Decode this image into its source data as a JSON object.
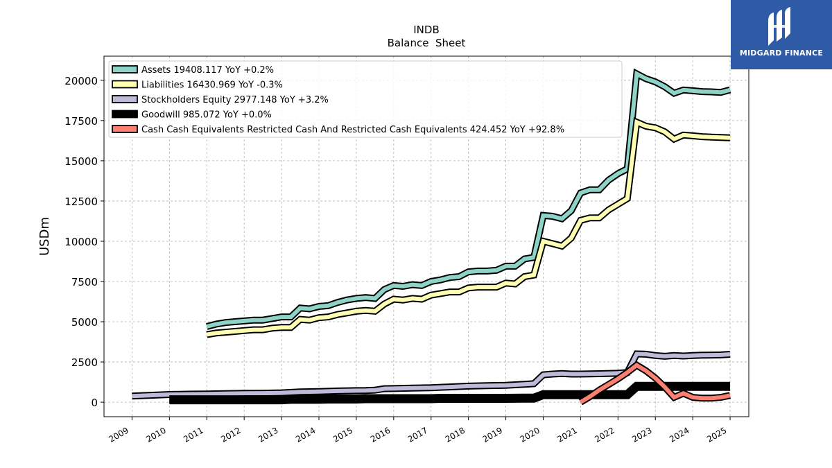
{
  "chart_data": {
    "type": "line",
    "title": "INDB",
    "subtitle": "Balance  Sheet",
    "ylabel": "USDm",
    "xlabel": "",
    "xlim": [
      2008.25,
      2025.5
    ],
    "ylim": [
      -900,
      21500
    ],
    "x_ticks": [
      "2009",
      "2010",
      "2011",
      "2012",
      "2013",
      "2014",
      "2015",
      "2016",
      "2017",
      "2018",
      "2019",
      "2020",
      "2021",
      "2022",
      "2023",
      "2024",
      "2025"
    ],
    "y_ticks": [
      "0",
      "2500",
      "5000",
      "7500",
      "10000",
      "12500",
      "15000",
      "17500",
      "20000"
    ],
    "grid": true,
    "legend_position": "top-left",
    "series": [
      {
        "name": "Assets  19408.117 YoY +0.2%",
        "color": "#8dd3c7",
        "width": 7,
        "points": [
          [
            2011.0,
            4700
          ],
          [
            2011.25,
            4850
          ],
          [
            2011.5,
            4950
          ],
          [
            2011.75,
            5000
          ],
          [
            2012.0,
            5050
          ],
          [
            2012.25,
            5100
          ],
          [
            2012.5,
            5100
          ],
          [
            2012.75,
            5200
          ],
          [
            2013.0,
            5300
          ],
          [
            2013.25,
            5300
          ],
          [
            2013.5,
            5850
          ],
          [
            2013.75,
            5800
          ],
          [
            2014.0,
            5950
          ],
          [
            2014.25,
            6000
          ],
          [
            2014.5,
            6200
          ],
          [
            2014.75,
            6350
          ],
          [
            2015.0,
            6450
          ],
          [
            2015.25,
            6500
          ],
          [
            2015.5,
            6450
          ],
          [
            2015.75,
            7000
          ],
          [
            2016.0,
            7250
          ],
          [
            2016.25,
            7200
          ],
          [
            2016.5,
            7300
          ],
          [
            2016.75,
            7250
          ],
          [
            2017.0,
            7500
          ],
          [
            2017.25,
            7600
          ],
          [
            2017.5,
            7750
          ],
          [
            2017.75,
            7800
          ],
          [
            2018.0,
            8100
          ],
          [
            2018.25,
            8150
          ],
          [
            2018.5,
            8150
          ],
          [
            2018.75,
            8200
          ],
          [
            2019.0,
            8450
          ],
          [
            2019.25,
            8450
          ],
          [
            2019.5,
            8900
          ],
          [
            2019.75,
            9000
          ],
          [
            2020.0,
            11600
          ],
          [
            2020.25,
            11550
          ],
          [
            2020.5,
            11400
          ],
          [
            2020.75,
            11900
          ],
          [
            2021.0,
            13000
          ],
          [
            2021.25,
            13200
          ],
          [
            2021.5,
            13200
          ],
          [
            2021.75,
            13800
          ],
          [
            2022.0,
            14200
          ],
          [
            2022.25,
            14500
          ],
          [
            2022.5,
            20400
          ],
          [
            2022.75,
            20100
          ],
          [
            2023.0,
            19900
          ],
          [
            2023.25,
            19600
          ],
          [
            2023.5,
            19200
          ],
          [
            2023.75,
            19400
          ],
          [
            2024.0,
            19350
          ],
          [
            2024.25,
            19300
          ],
          [
            2024.5,
            19280
          ],
          [
            2024.75,
            19250
          ],
          [
            2025.0,
            19408
          ]
        ]
      },
      {
        "name": "Liabilities  16430.969 YoY -0.3%",
        "color": "#ffffb3",
        "width": 7,
        "points": [
          [
            2011.0,
            4200
          ],
          [
            2011.25,
            4300
          ],
          [
            2011.5,
            4350
          ],
          [
            2011.75,
            4400
          ],
          [
            2012.0,
            4450
          ],
          [
            2012.25,
            4500
          ],
          [
            2012.5,
            4500
          ],
          [
            2012.75,
            4600
          ],
          [
            2013.0,
            4650
          ],
          [
            2013.25,
            4650
          ],
          [
            2013.5,
            5150
          ],
          [
            2013.75,
            5100
          ],
          [
            2014.0,
            5250
          ],
          [
            2014.25,
            5300
          ],
          [
            2014.5,
            5450
          ],
          [
            2014.75,
            5550
          ],
          [
            2015.0,
            5650
          ],
          [
            2015.25,
            5700
          ],
          [
            2015.5,
            5650
          ],
          [
            2015.75,
            6100
          ],
          [
            2016.0,
            6400
          ],
          [
            2016.25,
            6350
          ],
          [
            2016.5,
            6450
          ],
          [
            2016.75,
            6400
          ],
          [
            2017.0,
            6650
          ],
          [
            2017.25,
            6750
          ],
          [
            2017.5,
            6850
          ],
          [
            2017.75,
            6850
          ],
          [
            2018.0,
            7100
          ],
          [
            2018.25,
            7150
          ],
          [
            2018.5,
            7150
          ],
          [
            2018.75,
            7150
          ],
          [
            2019.0,
            7400
          ],
          [
            2019.25,
            7350
          ],
          [
            2019.5,
            7800
          ],
          [
            2019.75,
            7900
          ],
          [
            2020.0,
            10000
          ],
          [
            2020.25,
            9850
          ],
          [
            2020.5,
            9700
          ],
          [
            2020.75,
            10200
          ],
          [
            2021.0,
            11300
          ],
          [
            2021.25,
            11450
          ],
          [
            2021.5,
            11450
          ],
          [
            2021.75,
            11950
          ],
          [
            2022.0,
            12300
          ],
          [
            2022.25,
            12650
          ],
          [
            2022.5,
            17400
          ],
          [
            2022.75,
            17150
          ],
          [
            2023.0,
            17050
          ],
          [
            2023.25,
            16800
          ],
          [
            2023.5,
            16350
          ],
          [
            2023.75,
            16600
          ],
          [
            2024.0,
            16550
          ],
          [
            2024.25,
            16500
          ],
          [
            2024.5,
            16470
          ],
          [
            2024.75,
            16450
          ],
          [
            2025.0,
            16431
          ]
        ]
      },
      {
        "name": "Stockholders Equity  2977.148 YoY +3.2%",
        "color": "#bebada",
        "width": 7,
        "points": [
          [
            2009.0,
            380
          ],
          [
            2009.5,
            430
          ],
          [
            2010.0,
            480
          ],
          [
            2010.5,
            500
          ],
          [
            2011.0,
            510
          ],
          [
            2011.5,
            530
          ],
          [
            2012.0,
            550
          ],
          [
            2012.5,
            560
          ],
          [
            2013.0,
            580
          ],
          [
            2013.5,
            640
          ],
          [
            2014.0,
            660
          ],
          [
            2014.5,
            700
          ],
          [
            2015.0,
            720
          ],
          [
            2015.25,
            730
          ],
          [
            2015.5,
            750
          ],
          [
            2015.75,
            840
          ],
          [
            2016.0,
            850
          ],
          [
            2016.5,
            880
          ],
          [
            2017.0,
            900
          ],
          [
            2017.5,
            950
          ],
          [
            2018.0,
            1000
          ],
          [
            2018.5,
            1030
          ],
          [
            2019.0,
            1050
          ],
          [
            2019.5,
            1110
          ],
          [
            2019.75,
            1150
          ],
          [
            2020.0,
            1700
          ],
          [
            2020.25,
            1750
          ],
          [
            2020.5,
            1780
          ],
          [
            2020.75,
            1750
          ],
          [
            2021.0,
            1750
          ],
          [
            2021.5,
            1770
          ],
          [
            2022.0,
            1800
          ],
          [
            2022.25,
            1850
          ],
          [
            2022.5,
            3000
          ],
          [
            2022.75,
            2980
          ],
          [
            2023.0,
            2900
          ],
          [
            2023.25,
            2850
          ],
          [
            2023.5,
            2900
          ],
          [
            2023.75,
            2870
          ],
          [
            2024.0,
            2900
          ],
          [
            2024.25,
            2920
          ],
          [
            2024.5,
            2930
          ],
          [
            2024.75,
            2940
          ],
          [
            2025.0,
            2977
          ]
        ]
      },
      {
        "name": "Goodwill  985.072 YoY +0.0%",
        "color": "#000000",
        "width": 10,
        "points": [
          [
            2010.0,
            150
          ],
          [
            2010.5,
            150
          ],
          [
            2011.0,
            150
          ],
          [
            2011.5,
            150
          ],
          [
            2012.0,
            150
          ],
          [
            2012.5,
            150
          ],
          [
            2012.75,
            150
          ],
          [
            2013.0,
            150
          ],
          [
            2013.25,
            180
          ],
          [
            2013.5,
            180
          ],
          [
            2014.0,
            180
          ],
          [
            2014.25,
            200
          ],
          [
            2014.5,
            200
          ],
          [
            2015.0,
            200
          ],
          [
            2015.25,
            220
          ],
          [
            2015.5,
            220
          ],
          [
            2016.0,
            220
          ],
          [
            2016.5,
            220
          ],
          [
            2017.0,
            220
          ],
          [
            2017.25,
            240
          ],
          [
            2017.5,
            240
          ],
          [
            2018.0,
            240
          ],
          [
            2018.5,
            240
          ],
          [
            2019.0,
            240
          ],
          [
            2019.5,
            250
          ],
          [
            2019.75,
            250
          ],
          [
            2020.0,
            470
          ],
          [
            2020.5,
            470
          ],
          [
            2021.0,
            470
          ],
          [
            2021.5,
            470
          ],
          [
            2022.0,
            470
          ],
          [
            2022.25,
            470
          ],
          [
            2022.5,
            985
          ],
          [
            2023.0,
            985
          ],
          [
            2023.5,
            985
          ],
          [
            2024.0,
            985
          ],
          [
            2024.5,
            985
          ],
          [
            2025.0,
            985
          ]
        ]
      },
      {
        "name": "Cash Cash Equivalents Restricted Cash And Restricted Cash Equivalents  424.452 YoY +92.8%",
        "color": "#fb8072",
        "width": 7,
        "points": [
          [
            2021.0,
            0
          ],
          [
            2021.25,
            350
          ],
          [
            2021.5,
            750
          ],
          [
            2021.75,
            1100
          ],
          [
            2022.0,
            1450
          ],
          [
            2022.25,
            1850
          ],
          [
            2022.5,
            2300
          ],
          [
            2022.75,
            1950
          ],
          [
            2023.0,
            1500
          ],
          [
            2023.25,
            950
          ],
          [
            2023.5,
            300
          ],
          [
            2023.75,
            550
          ],
          [
            2024.0,
            300
          ],
          [
            2024.25,
            250
          ],
          [
            2024.5,
            250
          ],
          [
            2024.75,
            300
          ],
          [
            2025.0,
            424
          ]
        ]
      }
    ]
  },
  "logo": {
    "text": "MIDGARD FINANCE",
    "icon": "midgard-logo-icon",
    "background": "#2f5aa6"
  }
}
